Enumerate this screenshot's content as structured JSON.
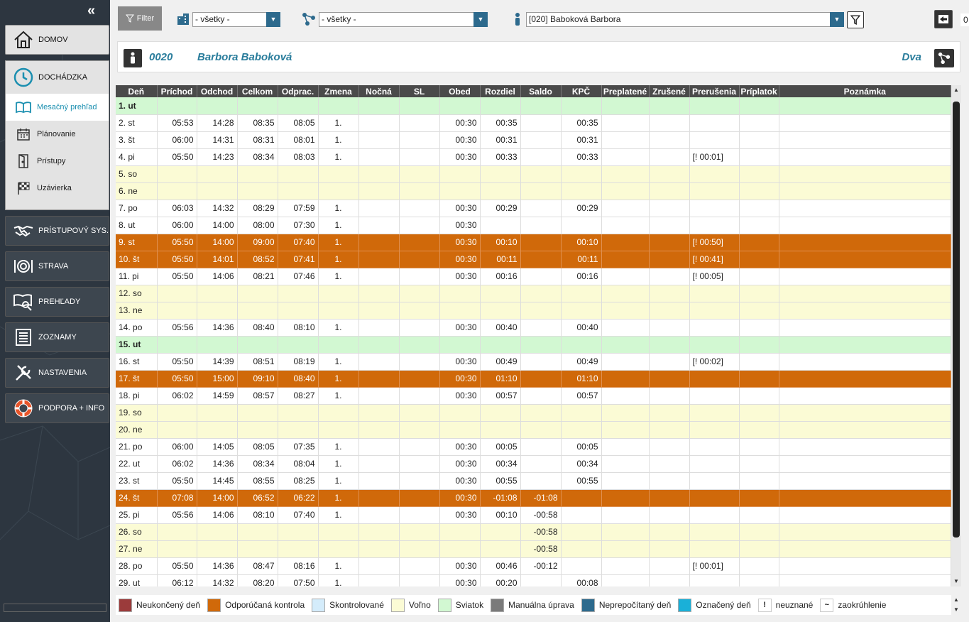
{
  "sidebar": {
    "collapse_glyph": "«",
    "nav": {
      "domov": "DOMOV",
      "dochadzka": "DOCHÁDZKA",
      "pristupovy": "PRÍSTUPOVÝ SYS.",
      "strava": "STRAVA",
      "prehlady": "PREHĽADY",
      "zoznamy": "ZOZNAMY",
      "nastavenia": "NASTAVENIA",
      "podpora": "PODPORA + INFO"
    },
    "sub": {
      "mesacny": "Mesačný prehľad",
      "planovanie": "Plánovanie",
      "pristupy": "Prístupy",
      "uzavierka": "Uzávierka"
    }
  },
  "topbar": {
    "filter_label": "Filter",
    "select1": "- všetky -",
    "select2": "- všetky -",
    "employee": "[020] Baboková Barbora",
    "right_value": "0"
  },
  "employee_header": {
    "id": "0020",
    "name": "Barbora Baboková",
    "group": "Dva"
  },
  "table": {
    "columns": [
      "Deň",
      "Príchod",
      "Odchod",
      "Celkom",
      "Odprac.",
      "Zmena",
      "Nočná",
      "SL",
      "Obed",
      "Rozdiel",
      "Saldo",
      "KPČ",
      "Preplatené",
      "Zrušené",
      "Prerušenia",
      "Príplatok",
      "Poznámka"
    ],
    "rows": [
      {
        "t": "sviatok",
        "c": [
          "1. ut",
          "",
          "",
          "",
          "",
          "",
          "",
          "",
          "",
          "",
          "",
          "",
          "",
          "",
          "",
          "",
          ""
        ]
      },
      {
        "t": "normal",
        "c": [
          "2. st",
          "05:53",
          "14:28",
          "08:35",
          "08:05",
          "1.",
          "",
          "",
          "00:30",
          "00:35",
          "",
          "00:35",
          "",
          "",
          "",
          "",
          ""
        ]
      },
      {
        "t": "normal",
        "c": [
          "3. št",
          "06:00",
          "14:31",
          "08:31",
          "08:01",
          "1.",
          "",
          "",
          "00:30",
          "00:31",
          "",
          "00:31",
          "",
          "",
          "",
          "",
          ""
        ]
      },
      {
        "t": "normal",
        "c": [
          "4. pi",
          "05:50",
          "14:23",
          "08:34",
          "08:03",
          "1.",
          "",
          "",
          "00:30",
          "00:33",
          "",
          "00:33",
          "",
          "",
          "[! 00:01]",
          "",
          ""
        ]
      },
      {
        "t": "volno",
        "c": [
          "5. so",
          "",
          "",
          "",
          "",
          "",
          "",
          "",
          "",
          "",
          "",
          "",
          "",
          "",
          "",
          "",
          ""
        ]
      },
      {
        "t": "volno",
        "c": [
          "6. ne",
          "",
          "",
          "",
          "",
          "",
          "",
          "",
          "",
          "",
          "",
          "",
          "",
          "",
          "",
          "",
          ""
        ]
      },
      {
        "t": "normal",
        "c": [
          "7. po",
          "06:03",
          "14:32",
          "08:29",
          "07:59",
          "1.",
          "",
          "",
          "00:30",
          "00:29",
          "",
          "00:29",
          "",
          "",
          "",
          "",
          ""
        ]
      },
      {
        "t": "normal",
        "c": [
          "8. ut",
          "06:00",
          "14:00",
          "08:00",
          "07:30",
          "1.",
          "",
          "",
          "00:30",
          "",
          "",
          "",
          "",
          "",
          "",
          "",
          ""
        ]
      },
      {
        "t": "kontrola",
        "c": [
          "9. st",
          "05:50",
          "14:00",
          "09:00",
          "07:40",
          "1.",
          "",
          "",
          "00:30",
          "00:10",
          "",
          "00:10",
          "",
          "",
          "[! 00:50]",
          "",
          ""
        ]
      },
      {
        "t": "kontrola",
        "c": [
          "10. št",
          "05:50",
          "14:01",
          "08:52",
          "07:41",
          "1.",
          "",
          "",
          "00:30",
          "00:11",
          "",
          "00:11",
          "",
          "",
          "[! 00:41]",
          "",
          ""
        ]
      },
      {
        "t": "normal",
        "c": [
          "11. pi",
          "05:50",
          "14:06",
          "08:21",
          "07:46",
          "1.",
          "",
          "",
          "00:30",
          "00:16",
          "",
          "00:16",
          "",
          "",
          "[! 00:05]",
          "",
          ""
        ]
      },
      {
        "t": "volno",
        "c": [
          "12. so",
          "",
          "",
          "",
          "",
          "",
          "",
          "",
          "",
          "",
          "",
          "",
          "",
          "",
          "",
          "",
          ""
        ]
      },
      {
        "t": "volno",
        "c": [
          "13. ne",
          "",
          "",
          "",
          "",
          "",
          "",
          "",
          "",
          "",
          "",
          "",
          "",
          "",
          "",
          "",
          ""
        ]
      },
      {
        "t": "normal",
        "c": [
          "14. po",
          "05:56",
          "14:36",
          "08:40",
          "08:10",
          "1.",
          "",
          "",
          "00:30",
          "00:40",
          "",
          "00:40",
          "",
          "",
          "",
          "",
          ""
        ]
      },
      {
        "t": "sviatok",
        "c": [
          "15. ut",
          "",
          "",
          "",
          "",
          "",
          "",
          "",
          "",
          "",
          "",
          "",
          "",
          "",
          "",
          "",
          ""
        ]
      },
      {
        "t": "normal",
        "c": [
          "16. st",
          "05:50",
          "14:39",
          "08:51",
          "08:19",
          "1.",
          "",
          "",
          "00:30",
          "00:49",
          "",
          "00:49",
          "",
          "",
          "[! 00:02]",
          "",
          ""
        ]
      },
      {
        "t": "kontrola",
        "c": [
          "17. št",
          "05:50",
          "15:00",
          "09:10",
          "08:40",
          "1.",
          "",
          "",
          "00:30",
          "01:10",
          "",
          "01:10",
          "",
          "",
          "",
          "",
          ""
        ]
      },
      {
        "t": "normal",
        "c": [
          "18. pi",
          "06:02",
          "14:59",
          "08:57",
          "08:27",
          "1.",
          "",
          "",
          "00:30",
          "00:57",
          "",
          "00:57",
          "",
          "",
          "",
          "",
          ""
        ]
      },
      {
        "t": "volno",
        "c": [
          "19. so",
          "",
          "",
          "",
          "",
          "",
          "",
          "",
          "",
          "",
          "",
          "",
          "",
          "",
          "",
          "",
          ""
        ]
      },
      {
        "t": "volno",
        "c": [
          "20. ne",
          "",
          "",
          "",
          "",
          "",
          "",
          "",
          "",
          "",
          "",
          "",
          "",
          "",
          "",
          "",
          ""
        ]
      },
      {
        "t": "normal",
        "c": [
          "21. po",
          "06:00",
          "14:05",
          "08:05",
          "07:35",
          "1.",
          "",
          "",
          "00:30",
          "00:05",
          "",
          "00:05",
          "",
          "",
          "",
          "",
          ""
        ]
      },
      {
        "t": "normal",
        "c": [
          "22. ut",
          "06:02",
          "14:36",
          "08:34",
          "08:04",
          "1.",
          "",
          "",
          "00:30",
          "00:34",
          "",
          "00:34",
          "",
          "",
          "",
          "",
          ""
        ]
      },
      {
        "t": "normal",
        "c": [
          "23. st",
          "05:50",
          "14:45",
          "08:55",
          "08:25",
          "1.",
          "",
          "",
          "00:30",
          "00:55",
          "",
          "00:55",
          "",
          "",
          "",
          "",
          ""
        ]
      },
      {
        "t": "kontrola",
        "c": [
          "24. št",
          "07:08",
          "14:00",
          "06:52",
          "06:22",
          "1.",
          "",
          "",
          "00:30",
          "-01:08",
          "-01:08",
          "",
          "",
          "",
          "",
          "",
          ""
        ]
      },
      {
        "t": "normal",
        "c": [
          "25. pi",
          "05:56",
          "14:06",
          "08:10",
          "07:40",
          "1.",
          "",
          "",
          "00:30",
          "00:10",
          "-00:58",
          "",
          "",
          "",
          "",
          "",
          ""
        ]
      },
      {
        "t": "volno",
        "c": [
          "26. so",
          "",
          "",
          "",
          "",
          "",
          "",
          "",
          "",
          "",
          "-00:58",
          "",
          "",
          "",
          "",
          "",
          ""
        ]
      },
      {
        "t": "volno",
        "c": [
          "27. ne",
          "",
          "",
          "",
          "",
          "",
          "",
          "",
          "",
          "",
          "-00:58",
          "",
          "",
          "",
          "",
          "",
          ""
        ]
      },
      {
        "t": "normal",
        "c": [
          "28. po",
          "05:50",
          "14:36",
          "08:47",
          "08:16",
          "1.",
          "",
          "",
          "00:30",
          "00:46",
          "-00:12",
          "",
          "",
          "",
          "[! 00:01]",
          "",
          ""
        ]
      },
      {
        "t": "normal",
        "c": [
          "29. ut",
          "06:12",
          "14:32",
          "08:20",
          "07:50",
          "1.",
          "",
          "",
          "00:30",
          "00:20",
          "",
          "00:08",
          "",
          "",
          "",
          "",
          ""
        ]
      }
    ]
  },
  "legend": [
    {
      "label": "Neukončený deň",
      "color": "#9b3b3b"
    },
    {
      "label": "Odporúčaná kontrola",
      "color": "#d0690a"
    },
    {
      "label": "Skontrolované",
      "color": "#d4ecfb"
    },
    {
      "label": "Voľno",
      "color": "#fbfbd5"
    },
    {
      "label": "Sviatok",
      "color": "#d2f8d2"
    },
    {
      "label": "Manuálna úprava",
      "color": "#7a7a7a"
    },
    {
      "label": "Neprepočítaný deň",
      "color": "#2d6a8d"
    },
    {
      "label": "Označený deň",
      "color": "#1ab0d8"
    },
    {
      "label": "neuznané",
      "symbol": "!"
    },
    {
      "label": "zaokrúhlenie",
      "symbol": "~"
    }
  ]
}
